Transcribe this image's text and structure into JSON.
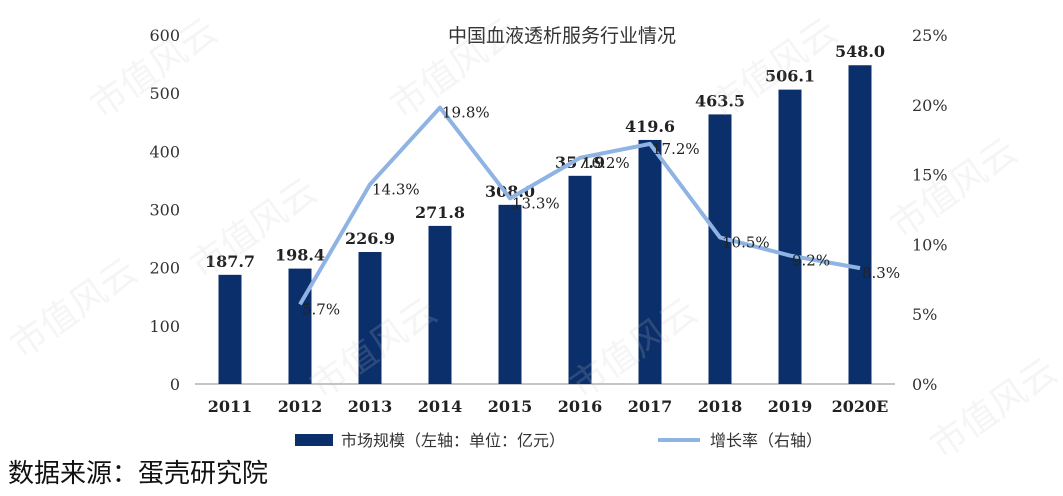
{
  "chart_data": {
    "type": "bar",
    "title": "中国血液透析服务行业情况",
    "categories": [
      "2011",
      "2012",
      "2013",
      "2014",
      "2015",
      "2016",
      "2017",
      "2018",
      "2019",
      "2020E"
    ],
    "series": [
      {
        "name": "市场规模（左轴：单位：亿元）",
        "type": "bar",
        "axis": "left",
        "color": "#0b2f6b",
        "values": [
          187.7,
          198.4,
          226.9,
          271.8,
          308.0,
          357.9,
          419.6,
          463.5,
          506.1,
          548.0
        ],
        "labels": [
          "187.7",
          "198.4",
          "226.9",
          "271.8",
          "308.0",
          "357.9",
          "419.6",
          "463.5",
          "506.1",
          "548.0"
        ]
      },
      {
        "name": "增长率（右轴）",
        "type": "line",
        "axis": "right",
        "color": "#8fb4e3",
        "values": [
          null,
          5.7,
          14.3,
          19.8,
          13.3,
          16.2,
          17.2,
          10.5,
          9.2,
          8.3
        ],
        "labels": [
          "",
          "5.7%",
          "14.3%",
          "19.8%",
          "13.3%",
          "16.2%",
          "17.2%",
          "10.5%",
          "9.2%",
          "8.3%"
        ]
      }
    ],
    "left_axis": {
      "ylim": [
        0,
        600
      ],
      "ticks": [
        "0",
        "100",
        "200",
        "300",
        "400",
        "500",
        "600"
      ]
    },
    "right_axis": {
      "ylim": [
        0,
        25
      ],
      "ticks": [
        "0%",
        "5%",
        "10%",
        "15%",
        "20%",
        "25%"
      ]
    },
    "legend_position": "bottom",
    "grid": false
  },
  "source_text": "数据来源：蛋壳研究院",
  "watermark_text": "市值风云"
}
